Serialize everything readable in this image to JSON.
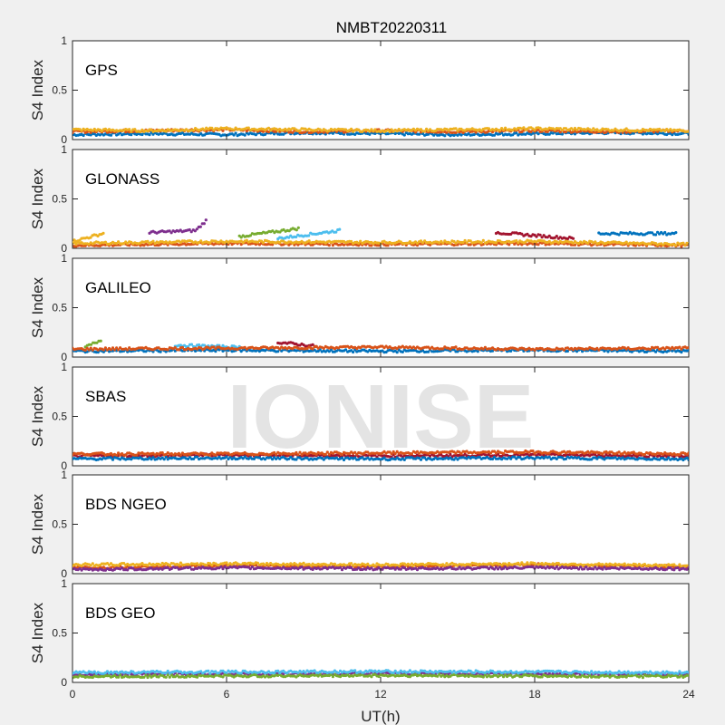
{
  "chart_data": {
    "type": "scatter",
    "title": "NMBT20220311",
    "xlabel": "UT(h)",
    "ylabel": "S4 Index",
    "xlim": [
      0,
      24
    ],
    "ylim": [
      0,
      1
    ],
    "x_ticks": [
      0,
      6,
      12,
      18,
      24
    ],
    "y_ticks": [
      0,
      0.5,
      1
    ],
    "grid": false,
    "watermark": "IONISE",
    "colors": [
      "#0072bd",
      "#d95319",
      "#edb120",
      "#7e2f8e",
      "#77ac30",
      "#4dbeee",
      "#a2142f"
    ],
    "panels": [
      {
        "label": "GPS",
        "tracks": [
          {
            "x": [
              0,
              3,
              6,
              9,
              12,
              15,
              18,
              21,
              24
            ],
            "y": [
              0.05,
              0.06,
              0.05,
              0.07,
              0.06,
              0.05,
              0.06,
              0.07,
              0.06
            ]
          },
          {
            "x": [
              0,
              3,
              6,
              9,
              12,
              15,
              18,
              21,
              24
            ],
            "y": [
              0.08,
              0.09,
              0.1,
              0.08,
              0.09,
              0.08,
              0.09,
              0.08,
              0.09
            ]
          },
          {
            "x": [
              0,
              3,
              6,
              9,
              12,
              15,
              18,
              21,
              24
            ],
            "y": [
              0.1,
              0.09,
              0.11,
              0.1,
              0.09,
              0.1,
              0.11,
              0.1,
              0.09
            ]
          }
        ]
      },
      {
        "label": "GLONASS",
        "tracks": [
          {
            "x": [
              0,
              1.2
            ],
            "y": [
              0.07,
              0.15
            ]
          },
          {
            "x": [
              3.0,
              4.8,
              5.2
            ],
            "y": [
              0.16,
              0.18,
              0.28
            ]
          },
          {
            "x": [
              6.5,
              8.8
            ],
            "y": [
              0.12,
              0.2
            ]
          },
          {
            "x": [
              8.0,
              10.4
            ],
            "y": [
              0.1,
              0.18
            ]
          },
          {
            "x": [
              16.5,
              19.5
            ],
            "y": [
              0.16,
              0.1
            ]
          },
          {
            "x": [
              20.5,
              23.5
            ],
            "y": [
              0.15,
              0.15
            ]
          },
          {
            "x": [
              0,
              6,
              12,
              18,
              24
            ],
            "y": [
              0.03,
              0.05,
              0.04,
              0.05,
              0.03
            ]
          },
          {
            "x": [
              0,
              6,
              12,
              18,
              24
            ],
            "y": [
              0.05,
              0.07,
              0.06,
              0.07,
              0.04
            ]
          }
        ]
      },
      {
        "label": "GALILEO",
        "tracks": [
          {
            "x": [
              0.5,
              1.1
            ],
            "y": [
              0.1,
              0.17
            ]
          },
          {
            "x": [
              4.0,
              6.5
            ],
            "y": [
              0.12,
              0.1
            ]
          },
          {
            "x": [
              8.0,
              9.5
            ],
            "y": [
              0.15,
              0.11
            ]
          },
          {
            "x": [
              0,
              6,
              12,
              18,
              24
            ],
            "y": [
              0.06,
              0.07,
              0.06,
              0.07,
              0.06
            ]
          },
          {
            "x": [
              0,
              6,
              12,
              18,
              24
            ],
            "y": [
              0.08,
              0.09,
              0.1,
              0.08,
              0.09
            ]
          }
        ]
      },
      {
        "label": "SBAS",
        "tracks": [
          {
            "x": [
              0,
              6,
              12,
              18,
              24
            ],
            "y": [
              0.1,
              0.11,
              0.1,
              0.11,
              0.1
            ]
          },
          {
            "x": [
              0,
              6,
              12,
              18,
              24
            ],
            "y": [
              0.07,
              0.08,
              0.07,
              0.08,
              0.07
            ]
          },
          {
            "x": [
              0,
              6,
              12,
              18,
              24
            ],
            "y": [
              0.12,
              0.12,
              0.13,
              0.14,
              0.12
            ]
          }
        ]
      },
      {
        "label": "BDS NGEO",
        "tracks": [
          {
            "x": [
              0,
              6,
              12,
              18,
              24
            ],
            "y": [
              0.06,
              0.08,
              0.07,
              0.09,
              0.07
            ]
          },
          {
            "x": [
              0,
              6,
              12,
              18,
              24
            ],
            "y": [
              0.09,
              0.1,
              0.09,
              0.1,
              0.08
            ]
          },
          {
            "x": [
              0,
              6,
              12,
              18,
              24
            ],
            "y": [
              0.04,
              0.06,
              0.05,
              0.06,
              0.05
            ]
          }
        ]
      },
      {
        "label": "BDS GEO",
        "tracks": [
          {
            "x": [
              0,
              12,
              24
            ],
            "y": [
              0.08,
              0.09,
              0.08
            ]
          },
          {
            "x": [
              0,
              12,
              24
            ],
            "y": [
              0.06,
              0.07,
              0.06
            ]
          },
          {
            "x": [
              0,
              12,
              24
            ],
            "y": [
              0.1,
              0.11,
              0.1
            ]
          }
        ]
      }
    ]
  }
}
